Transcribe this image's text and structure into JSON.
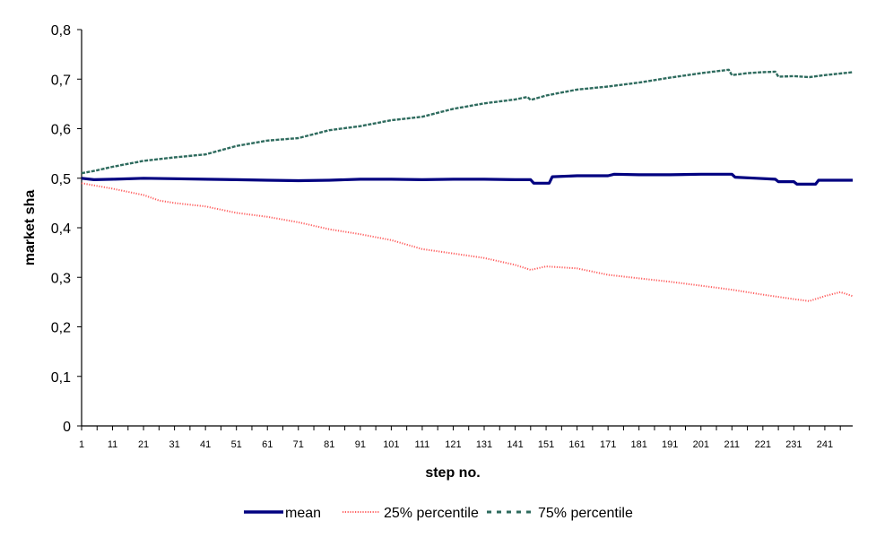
{
  "chart_data": {
    "type": "line",
    "xlabel": "step no.",
    "ylabel": "market sha",
    "xlim": [
      1,
      250
    ],
    "ylim": [
      0,
      0.8
    ],
    "x_ticks": [
      1,
      11,
      21,
      31,
      41,
      51,
      61,
      71,
      81,
      91,
      101,
      111,
      121,
      131,
      141,
      151,
      161,
      171,
      181,
      191,
      201,
      211,
      221,
      231,
      241
    ],
    "y_ticks": [
      {
        "value": 0,
        "label": "0"
      },
      {
        "value": 0.1,
        "label": "0,1"
      },
      {
        "value": 0.2,
        "label": "0,2"
      },
      {
        "value": 0.3,
        "label": "0,3"
      },
      {
        "value": 0.4,
        "label": "0,4"
      },
      {
        "value": 0.5,
        "label": "0,5"
      },
      {
        "value": 0.6,
        "label": "0,6"
      },
      {
        "value": 0.7,
        "label": "0,7"
      },
      {
        "value": 0.8,
        "label": "0,8"
      }
    ],
    "grid": false,
    "legend_position": "bottom",
    "series": [
      {
        "name": "mean",
        "color": "#000080",
        "style": "solid",
        "points": [
          [
            1,
            0.5
          ],
          [
            5,
            0.497
          ],
          [
            11,
            0.498
          ],
          [
            21,
            0.5
          ],
          [
            31,
            0.499
          ],
          [
            41,
            0.498
          ],
          [
            51,
            0.497
          ],
          [
            61,
            0.496
          ],
          [
            71,
            0.495
          ],
          [
            81,
            0.496
          ],
          [
            91,
            0.498
          ],
          [
            101,
            0.498
          ],
          [
            111,
            0.497
          ],
          [
            121,
            0.498
          ],
          [
            131,
            0.498
          ],
          [
            141,
            0.497
          ],
          [
            146,
            0.497
          ],
          [
            147,
            0.49
          ],
          [
            152,
            0.49
          ],
          [
            153,
            0.503
          ],
          [
            161,
            0.505
          ],
          [
            171,
            0.505
          ],
          [
            173,
            0.508
          ],
          [
            181,
            0.507
          ],
          [
            191,
            0.507
          ],
          [
            201,
            0.508
          ],
          [
            211,
            0.508
          ],
          [
            212,
            0.502
          ],
          [
            219,
            0.5
          ],
          [
            225,
            0.498
          ],
          [
            226,
            0.493
          ],
          [
            231,
            0.493
          ],
          [
            232,
            0.488
          ],
          [
            238,
            0.488
          ],
          [
            239,
            0.496
          ],
          [
            250,
            0.496
          ]
        ]
      },
      {
        "name": "25% percentile",
        "color": "#ff6060",
        "style": "dotted",
        "points": [
          [
            1,
            0.49
          ],
          [
            11,
            0.479
          ],
          [
            21,
            0.466
          ],
          [
            26,
            0.455
          ],
          [
            31,
            0.45
          ],
          [
            41,
            0.443
          ],
          [
            51,
            0.43
          ],
          [
            61,
            0.422
          ],
          [
            71,
            0.411
          ],
          [
            81,
            0.397
          ],
          [
            91,
            0.387
          ],
          [
            101,
            0.375
          ],
          [
            111,
            0.357
          ],
          [
            121,
            0.348
          ],
          [
            131,
            0.339
          ],
          [
            141,
            0.325
          ],
          [
            146,
            0.315
          ],
          [
            151,
            0.322
          ],
          [
            161,
            0.318
          ],
          [
            171,
            0.305
          ],
          [
            181,
            0.298
          ],
          [
            191,
            0.291
          ],
          [
            201,
            0.283
          ],
          [
            211,
            0.275
          ],
          [
            221,
            0.265
          ],
          [
            231,
            0.256
          ],
          [
            236,
            0.252
          ],
          [
            241,
            0.262
          ],
          [
            246,
            0.27
          ],
          [
            250,
            0.262
          ]
        ]
      },
      {
        "name": "75% percentile",
        "color": "#2e6b5e",
        "style": "dashed",
        "points": [
          [
            1,
            0.51
          ],
          [
            6,
            0.516
          ],
          [
            11,
            0.523
          ],
          [
            21,
            0.535
          ],
          [
            31,
            0.542
          ],
          [
            41,
            0.548
          ],
          [
            51,
            0.565
          ],
          [
            61,
            0.576
          ],
          [
            71,
            0.581
          ],
          [
            81,
            0.597
          ],
          [
            91,
            0.605
          ],
          [
            101,
            0.617
          ],
          [
            111,
            0.624
          ],
          [
            121,
            0.64
          ],
          [
            131,
            0.651
          ],
          [
            141,
            0.659
          ],
          [
            145,
            0.664
          ],
          [
            146,
            0.658
          ],
          [
            151,
            0.667
          ],
          [
            161,
            0.679
          ],
          [
            171,
            0.685
          ],
          [
            181,
            0.693
          ],
          [
            191,
            0.703
          ],
          [
            201,
            0.712
          ],
          [
            210,
            0.719
          ],
          [
            211,
            0.708
          ],
          [
            216,
            0.712
          ],
          [
            221,
            0.714
          ],
          [
            225,
            0.715
          ],
          [
            226,
            0.705
          ],
          [
            231,
            0.706
          ],
          [
            236,
            0.704
          ],
          [
            241,
            0.708
          ],
          [
            250,
            0.714
          ]
        ]
      }
    ]
  }
}
